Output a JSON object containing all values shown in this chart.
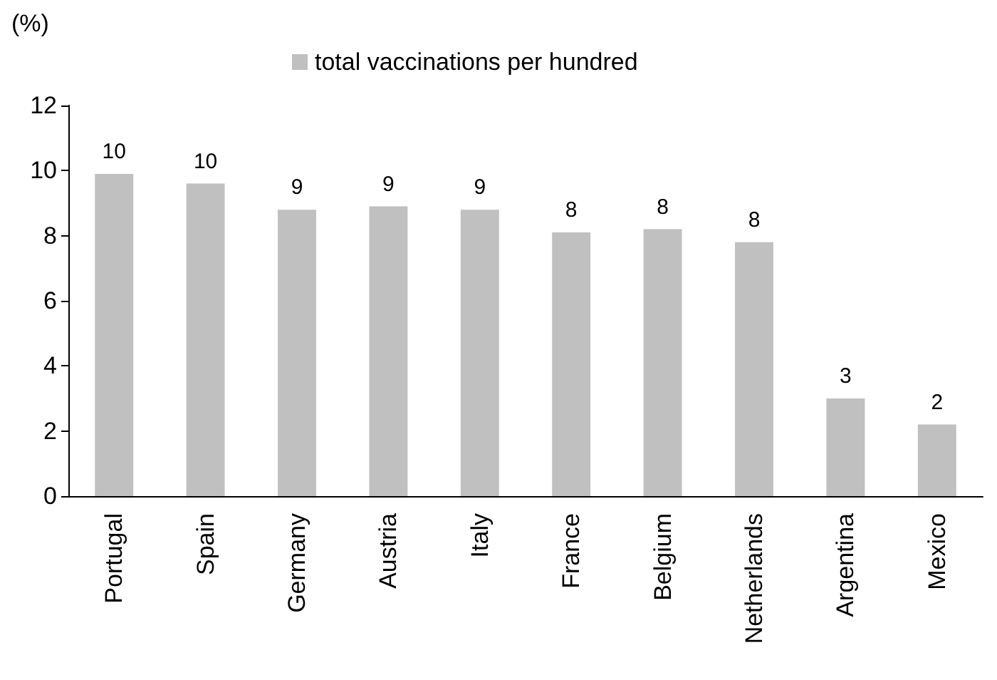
{
  "chart_data": {
    "type": "bar",
    "ylabel": "(%)",
    "categories": [
      "Portugal",
      "Spain",
      "Germany",
      "Austria",
      "Italy",
      "France",
      "Belgium",
      "Netherlands",
      "Argentina",
      "Mexico"
    ],
    "series": [
      {
        "name": "total vaccinations per hundred",
        "color": "#c0c0c0",
        "values": [
          9.9,
          9.6,
          8.8,
          8.9,
          8.8,
          8.1,
          8.2,
          7.8,
          3.0,
          2.2
        ],
        "value_labels": [
          "10",
          "10",
          "9",
          "9",
          "9",
          "8",
          "8",
          "8",
          "3",
          "2"
        ]
      }
    ],
    "ylim": [
      0,
      12
    ],
    "yticks": [
      0,
      2,
      4,
      6,
      8,
      10,
      12
    ],
    "grid": false,
    "legend": "top"
  }
}
